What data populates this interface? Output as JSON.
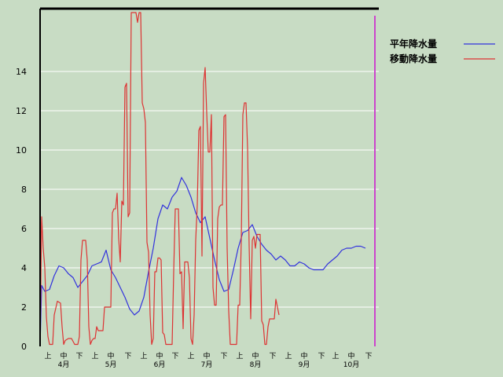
{
  "chart_data": {
    "type": "line",
    "title": "",
    "xlabel": "",
    "ylabel": "",
    "ylim": [
      0,
      17
    ],
    "yticks": [
      0,
      2,
      4,
      6,
      8,
      10,
      12,
      14
    ],
    "grid": true,
    "legend_position": "top-right",
    "x_range": [
      0,
      214
    ],
    "x_tick_labels": [
      {
        "x": 5,
        "label": "上"
      },
      {
        "x": 15,
        "label": "中"
      },
      {
        "x": 25,
        "label": "下"
      },
      {
        "x": 35,
        "label": "上"
      },
      {
        "x": 45,
        "label": "中"
      },
      {
        "x": 56,
        "label": "下"
      },
      {
        "x": 66,
        "label": "上"
      },
      {
        "x": 76,
        "label": "中"
      },
      {
        "x": 86,
        "label": "下"
      },
      {
        "x": 96,
        "label": "上"
      },
      {
        "x": 106,
        "label": "中"
      },
      {
        "x": 117,
        "label": "下"
      },
      {
        "x": 127,
        "label": "上"
      },
      {
        "x": 137,
        "label": "中"
      },
      {
        "x": 148,
        "label": "下"
      },
      {
        "x": 158,
        "label": "上"
      },
      {
        "x": 168,
        "label": "中"
      },
      {
        "x": 179,
        "label": "下"
      },
      {
        "x": 188,
        "label": "上"
      },
      {
        "x": 198,
        "label": "中"
      },
      {
        "x": 209,
        "label": "下"
      }
    ],
    "month_labels": [
      {
        "x": 15,
        "label": "4月"
      },
      {
        "x": 45,
        "label": "5月"
      },
      {
        "x": 76,
        "label": "6月"
      },
      {
        "x": 106,
        "label": "7月"
      },
      {
        "x": 137,
        "label": "8月"
      },
      {
        "x": 168,
        "label": "9月"
      },
      {
        "x": 198,
        "label": "10月"
      }
    ],
    "series": [
      {
        "name": "平年降水量",
        "color": "#3333dd",
        "points": [
          [
            0,
            0
          ],
          [
            1,
            3.1
          ],
          [
            3,
            2.8
          ],
          [
            6,
            2.9
          ],
          [
            9,
            3.6
          ],
          [
            12,
            4.1
          ],
          [
            15,
            4.0
          ],
          [
            18,
            3.7
          ],
          [
            21,
            3.5
          ],
          [
            24,
            3.0
          ],
          [
            27,
            3.3
          ],
          [
            30,
            3.6
          ],
          [
            33,
            4.1
          ],
          [
            36,
            4.2
          ],
          [
            39,
            4.3
          ],
          [
            42,
            4.9
          ],
          [
            45,
            3.9
          ],
          [
            48,
            3.5
          ],
          [
            51,
            3.0
          ],
          [
            54,
            2.5
          ],
          [
            57,
            1.9
          ],
          [
            60,
            1.6
          ],
          [
            63,
            1.8
          ],
          [
            66,
            2.5
          ],
          [
            69,
            3.8
          ],
          [
            72,
            5.0
          ],
          [
            75,
            6.5
          ],
          [
            78,
            7.2
          ],
          [
            81,
            7.0
          ],
          [
            84,
            7.6
          ],
          [
            87,
            7.9
          ],
          [
            90,
            8.6
          ],
          [
            93,
            8.2
          ],
          [
            96,
            7.6
          ],
          [
            99,
            6.8
          ],
          [
            102,
            6.3
          ],
          [
            105,
            6.6
          ],
          [
            108,
            5.5
          ],
          [
            111,
            4.4
          ],
          [
            114,
            3.4
          ],
          [
            117,
            2.8
          ],
          [
            120,
            2.9
          ],
          [
            123,
            3.9
          ],
          [
            126,
            5.0
          ],
          [
            129,
            5.8
          ],
          [
            132,
            5.9
          ],
          [
            135,
            6.2
          ],
          [
            138,
            5.6
          ],
          [
            141,
            5.2
          ],
          [
            144,
            4.9
          ],
          [
            147,
            4.7
          ],
          [
            150,
            4.4
          ],
          [
            153,
            4.6
          ],
          [
            156,
            4.4
          ],
          [
            159,
            4.1
          ],
          [
            162,
            4.1
          ],
          [
            165,
            4.3
          ],
          [
            168,
            4.2
          ],
          [
            171,
            4.0
          ],
          [
            174,
            3.9
          ],
          [
            177,
            3.9
          ],
          [
            180,
            3.9
          ],
          [
            183,
            4.2
          ],
          [
            186,
            4.4
          ],
          [
            189,
            4.6
          ],
          [
            192,
            4.9
          ],
          [
            195,
            5.0
          ],
          [
            198,
            5.0
          ],
          [
            201,
            5.1
          ],
          [
            204,
            5.1
          ],
          [
            207,
            5.0
          ]
        ]
      },
      {
        "name": "移動降水量",
        "color": "#dd3333",
        "points": [
          [
            0,
            0
          ],
          [
            1,
            6.6
          ],
          [
            2,
            5.0
          ],
          [
            3,
            4.0
          ],
          [
            4,
            1.5
          ],
          [
            5,
            0.5
          ],
          [
            6,
            0.1
          ],
          [
            8,
            0.1
          ],
          [
            9,
            1.6
          ],
          [
            11,
            2.3
          ],
          [
            13,
            2.2
          ],
          [
            14,
            1.0
          ],
          [
            15,
            0.1
          ],
          [
            16,
            0.3
          ],
          [
            18,
            0.4
          ],
          [
            20,
            0.4
          ],
          [
            22,
            0.1
          ],
          [
            24,
            0.1
          ],
          [
            25,
            0.5
          ],
          [
            26,
            4.4
          ],
          [
            27,
            5.4
          ],
          [
            29,
            5.4
          ],
          [
            30,
            4.4
          ],
          [
            31,
            1.0
          ],
          [
            32,
            0.1
          ],
          [
            33,
            0.3
          ],
          [
            34,
            0.4
          ],
          [
            35,
            0.4
          ],
          [
            36,
            1.0
          ],
          [
            37,
            0.8
          ],
          [
            38,
            0.8
          ],
          [
            40,
            0.8
          ],
          [
            41,
            2.0
          ],
          [
            43,
            2.0
          ],
          [
            45,
            2.0
          ],
          [
            46,
            6.8
          ],
          [
            47,
            7.0
          ],
          [
            48,
            7.0
          ],
          [
            49,
            7.8
          ],
          [
            50,
            5.5
          ],
          [
            51,
            4.3
          ],
          [
            52,
            7.4
          ],
          [
            53,
            7.2
          ],
          [
            54,
            13.2
          ],
          [
            55,
            13.4
          ],
          [
            56,
            6.6
          ],
          [
            57,
            6.8
          ],
          [
            58,
            17
          ],
          [
            60,
            17
          ],
          [
            61,
            17
          ],
          [
            62,
            16.5
          ],
          [
            63,
            17
          ],
          [
            64,
            17
          ],
          [
            65,
            12.4
          ],
          [
            66,
            12.1
          ],
          [
            67,
            11.4
          ],
          [
            68,
            5.3
          ],
          [
            69,
            4.8
          ],
          [
            70,
            1.6
          ],
          [
            71,
            0.1
          ],
          [
            72,
            0.4
          ],
          [
            73,
            3.8
          ],
          [
            74,
            3.8
          ],
          [
            75,
            4.5
          ],
          [
            76,
            4.5
          ],
          [
            77,
            4.4
          ],
          [
            78,
            0.7
          ],
          [
            79,
            0.6
          ],
          [
            80,
            0.1
          ],
          [
            82,
            0.1
          ],
          [
            84,
            0.1
          ],
          [
            85,
            3.8
          ],
          [
            86,
            7.0
          ],
          [
            87,
            7.0
          ],
          [
            88,
            7.0
          ],
          [
            89,
            3.7
          ],
          [
            90,
            3.8
          ],
          [
            91,
            0.9
          ],
          [
            92,
            4.3
          ],
          [
            93,
            4.3
          ],
          [
            94,
            4.3
          ],
          [
            95,
            3.5
          ],
          [
            96,
            0.4
          ],
          [
            97,
            0.1
          ],
          [
            98,
            1.6
          ],
          [
            99,
            5.4
          ],
          [
            100,
            7.2
          ],
          [
            101,
            11.0
          ],
          [
            102,
            11.2
          ],
          [
            103,
            4.6
          ],
          [
            104,
            13.4
          ],
          [
            105,
            14.2
          ],
          [
            106,
            11.9
          ],
          [
            107,
            9.9
          ],
          [
            108,
            9.9
          ],
          [
            109,
            11.8
          ],
          [
            110,
            3.0
          ],
          [
            111,
            2.1
          ],
          [
            112,
            2.1
          ],
          [
            113,
            6.5
          ],
          [
            114,
            7.1
          ],
          [
            115,
            7.2
          ],
          [
            116,
            7.2
          ],
          [
            117,
            11.7
          ],
          [
            118,
            11.8
          ],
          [
            119,
            5.0
          ],
          [
            120,
            1.8
          ],
          [
            121,
            0.1
          ],
          [
            124,
            0.1
          ],
          [
            125,
            0.1
          ],
          [
            126,
            2.1
          ],
          [
            127,
            2.1
          ],
          [
            128,
            5.4
          ],
          [
            129,
            11.8
          ],
          [
            130,
            12.4
          ],
          [
            131,
            12.4
          ],
          [
            132,
            10.1
          ],
          [
            133,
            5.1
          ],
          [
            134,
            1.4
          ],
          [
            135,
            5.4
          ],
          [
            136,
            5.6
          ],
          [
            137,
            5.0
          ],
          [
            138,
            5.7
          ],
          [
            139,
            5.7
          ],
          [
            140,
            5.7
          ],
          [
            141,
            1.3
          ],
          [
            142,
            1.1
          ],
          [
            143,
            0.1
          ],
          [
            144,
            0.1
          ],
          [
            145,
            1.0
          ],
          [
            146,
            1.4
          ],
          [
            147,
            1.4
          ],
          [
            148,
            1.4
          ],
          [
            149,
            1.4
          ],
          [
            150,
            2.4
          ],
          [
            151,
            2.0
          ],
          [
            152,
            1.6
          ]
        ]
      }
    ]
  }
}
